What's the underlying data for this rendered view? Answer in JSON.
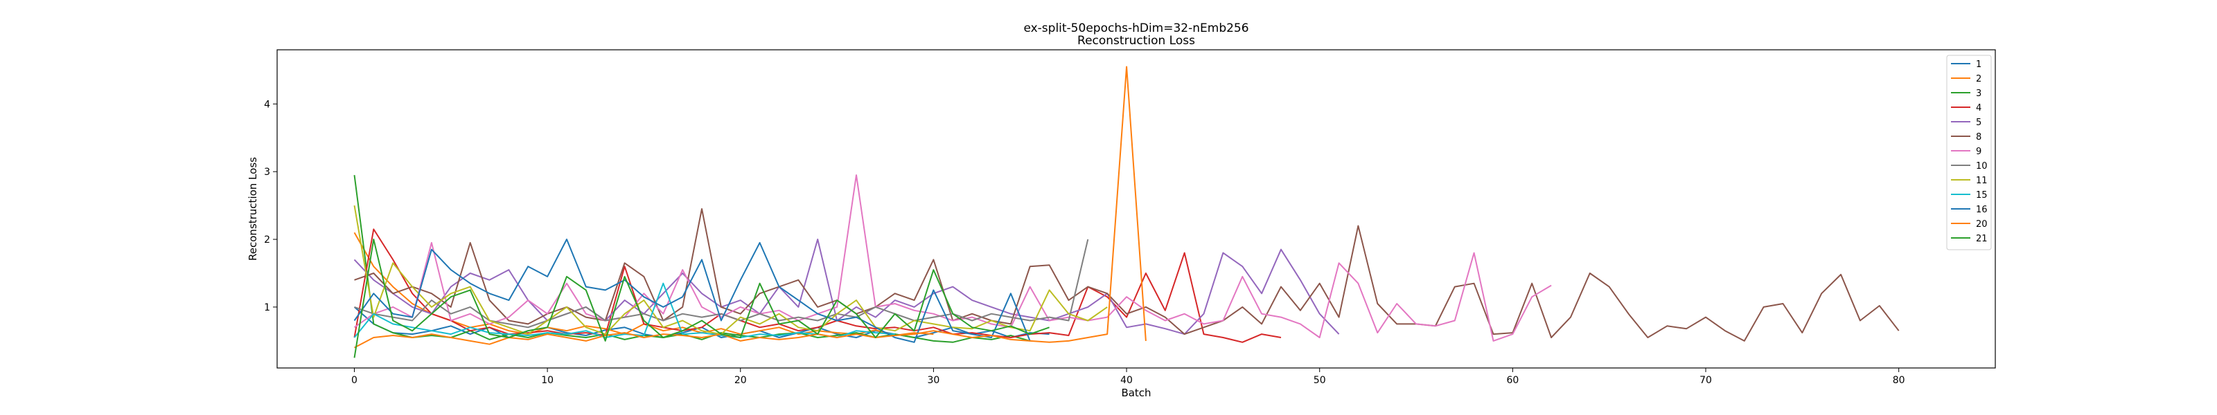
{
  "chart_data": {
    "type": "line",
    "title": "ex-split-50epochs-hDim=32-nEmb256",
    "subtitle": "Reconstruction Loss",
    "xlabel": "Batch",
    "ylabel": "Reconstruction Loss",
    "xlim": [
      -4,
      85
    ],
    "ylim": [
      0.1,
      4.8
    ],
    "xticks": [
      0,
      10,
      20,
      30,
      40,
      50,
      60,
      70,
      80
    ],
    "yticks": [
      1,
      2,
      3,
      4
    ],
    "legend_position": "upper-right",
    "grid": false,
    "series": [
      {
        "name": "1",
        "color": "#1f77b4",
        "values": [
          1.0,
          0.75,
          0.62,
          0.6,
          0.65,
          0.72,
          0.6,
          0.7,
          0.55,
          0.65,
          0.7,
          0.62,
          0.58,
          0.66,
          0.7,
          0.6,
          0.55,
          0.62,
          0.7,
          0.55,
          0.6,
          0.65,
          0.55,
          0.62,
          0.7,
          0.6,
          0.55,
          0.65,
          0.6,
          0.55,
          0.62,
          0.7,
          0.6,
          0.65,
          0.55,
          0.62,
          0.6
        ]
      },
      {
        "name": "2",
        "color": "#ff7f0e",
        "values": [
          2.1,
          1.6,
          1.3,
          1.05,
          0.9,
          0.8,
          0.7,
          0.75,
          0.65,
          0.6,
          0.7,
          0.65,
          0.72,
          0.68,
          0.6,
          0.75,
          0.65,
          0.7,
          0.62,
          0.68,
          0.6,
          0.65,
          0.7,
          0.6,
          0.65,
          0.62,
          0.6,
          0.66,
          0.58,
          0.62,
          0.6
        ]
      },
      {
        "name": "3",
        "color": "#2ca02c",
        "values": [
          2.95,
          0.75,
          0.62,
          0.55,
          0.58,
          0.55,
          0.65,
          0.52,
          0.6,
          0.55,
          0.62,
          0.58,
          0.55,
          0.6,
          0.52,
          0.58,
          0.55,
          0.6,
          0.52,
          0.62,
          0.58,
          0.55,
          0.6,
          0.62,
          0.55,
          0.58,
          0.62,
          0.55,
          0.6,
          0.55,
          0.5,
          0.48,
          0.55,
          0.52,
          0.58,
          0.5
        ]
      },
      {
        "name": "4",
        "color": "#d62728",
        "values": [
          0.55,
          2.15,
          1.7,
          1.2,
          0.9,
          0.8,
          0.65,
          0.7,
          0.6,
          0.62,
          0.65,
          0.6,
          0.62,
          0.58,
          1.6,
          0.75,
          0.7,
          0.65,
          0.7,
          0.9,
          0.8,
          0.7,
          0.75,
          0.65,
          0.7,
          0.8,
          0.72,
          0.68,
          0.7,
          0.65,
          0.7,
          0.6,
          0.62,
          0.58,
          0.55,
          0.6,
          0.62,
          0.58,
          1.3,
          1.15,
          0.85,
          1.5,
          0.95,
          1.8,
          0.6,
          0.55,
          0.48,
          0.6,
          0.55
        ]
      },
      {
        "name": "5",
        "color": "#9467bd",
        "values": [
          1.7,
          1.4,
          1.2,
          1.0,
          0.9,
          1.3,
          1.5,
          1.4,
          1.55,
          1.1,
          0.8,
          0.9,
          1.0,
          0.8,
          1.1,
          0.9,
          1.2,
          1.5,
          1.2,
          1.0,
          1.1,
          0.9,
          1.3,
          1.0,
          2.0,
          0.8,
          1.0,
          0.85,
          1.1,
          1.0,
          1.2,
          1.3,
          1.1,
          1.0,
          0.9,
          0.85,
          0.8,
          0.9,
          1.0,
          1.2,
          0.7,
          0.75,
          0.68,
          0.6,
          0.9,
          1.8,
          1.6,
          1.2,
          1.85,
          1.4,
          0.9,
          0.6
        ]
      },
      {
        "name": "8",
        "color": "#8c564b",
        "values": [
          1.4,
          1.5,
          1.2,
          1.3,
          1.2,
          1.0,
          1.95,
          1.1,
          0.8,
          0.75,
          0.9,
          1.0,
          0.85,
          0.8,
          1.65,
          1.45,
          0.8,
          1.0,
          2.45,
          1.0,
          0.9,
          1.2,
          1.3,
          1.4,
          1.0,
          1.1,
          0.9,
          1.0,
          1.2,
          1.1,
          1.7,
          0.8,
          0.9,
          0.8,
          0.75,
          1.6,
          1.62,
          1.1,
          1.3,
          1.2,
          0.9,
          1.0,
          0.85,
          0.6,
          0.7,
          0.8,
          1.0,
          0.75,
          1.3,
          0.95,
          1.35,
          0.85,
          2.2,
          1.05,
          0.75,
          0.75,
          0.72,
          1.3,
          1.35,
          0.6,
          0.62,
          1.35,
          0.55,
          0.85,
          1.5,
          1.3,
          0.9,
          0.55,
          0.72,
          0.68,
          0.85,
          0.65,
          0.5,
          1.0,
          1.05,
          0.62,
          1.2,
          1.48,
          0.8,
          1.02,
          0.65
        ]
      },
      {
        "name": "9",
        "color": "#e377c2",
        "values": [
          0.7,
          0.9,
          1.0,
          0.85,
          1.95,
          0.8,
          0.9,
          0.75,
          0.85,
          1.1,
          0.9,
          1.35,
          0.9,
          0.8,
          0.85,
          1.2,
          0.9,
          1.55,
          1.0,
          0.85,
          1.0,
          0.9,
          0.95,
          0.8,
          0.9,
          1.0,
          2.95,
          1.0,
          1.05,
          0.95,
          0.9,
          0.8,
          0.85,
          0.75,
          0.7,
          1.3,
          0.8,
          0.85,
          0.8,
          0.85,
          1.15,
          0.95,
          0.8,
          0.9,
          0.75,
          0.8,
          1.45,
          0.9,
          0.85,
          0.75,
          0.55,
          1.65,
          1.35,
          0.62,
          1.05,
          0.75,
          0.72,
          0.8,
          1.8,
          0.5,
          0.6,
          1.15,
          1.32
        ]
      },
      {
        "name": "10",
        "color": "#7f7f7f",
        "values": [
          1.0,
          0.9,
          0.85,
          0.8,
          1.1,
          0.9,
          1.0,
          0.8,
          0.75,
          0.7,
          0.8,
          0.9,
          1.0,
          0.8,
          0.85,
          0.9,
          0.8,
          0.9,
          0.85,
          0.9,
          0.8,
          0.9,
          0.8,
          0.85,
          0.8,
          0.9,
          0.85,
          1.0,
          0.9,
          0.8,
          0.85,
          0.9,
          0.8,
          0.9,
          0.85,
          0.8,
          0.85,
          0.8,
          2.0
        ]
      },
      {
        "name": "11",
        "color": "#bcbd22",
        "values": [
          2.5,
          0.85,
          1.65,
          1.3,
          1.0,
          1.2,
          1.3,
          0.8,
          0.7,
          0.6,
          0.8,
          1.0,
          0.7,
          0.6,
          0.9,
          1.1,
          0.7,
          0.8,
          0.65,
          0.6,
          0.85,
          0.75,
          0.9,
          0.7,
          0.65,
          0.9,
          1.1,
          0.7,
          0.65,
          0.8,
          0.75,
          0.7,
          0.68,
          0.8,
          0.7,
          0.65,
          1.25,
          0.9,
          0.8,
          1.0
        ]
      },
      {
        "name": "15",
        "color": "#17becf",
        "values": [
          0.55,
          0.9,
          0.75,
          0.7,
          0.65,
          0.6,
          0.7,
          0.62,
          0.6,
          0.58,
          0.62,
          0.6,
          0.65,
          0.55,
          0.6,
          0.58,
          1.35,
          0.6,
          0.62,
          0.58,
          0.55,
          0.6,
          0.58,
          0.62,
          0.6,
          0.55,
          0.65,
          0.62,
          0.6
        ]
      },
      {
        "name": "16",
        "color": "#1f77b4",
        "values": [
          0.8,
          1.2,
          0.9,
          0.85,
          1.85,
          1.55,
          1.35,
          1.2,
          1.1,
          1.6,
          1.45,
          2.0,
          1.3,
          1.25,
          1.4,
          1.15,
          1.0,
          1.15,
          1.7,
          0.8,
          1.4,
          1.95,
          1.3,
          1.1,
          0.9,
          0.8,
          0.85,
          0.7,
          0.55,
          0.48,
          1.25,
          0.65,
          0.6,
          0.55,
          1.2,
          0.5
        ]
      },
      {
        "name": "20",
        "color": "#ff7f0e",
        "values": [
          0.4,
          0.55,
          0.58,
          0.55,
          0.6,
          0.55,
          0.5,
          0.45,
          0.55,
          0.52,
          0.6,
          0.55,
          0.5,
          0.58,
          0.62,
          0.55,
          0.6,
          0.58,
          0.55,
          0.6,
          0.5,
          0.55,
          0.52,
          0.55,
          0.6,
          0.55,
          0.6,
          0.55,
          0.58,
          0.6,
          0.65,
          0.6,
          0.55,
          0.58,
          0.52,
          0.5,
          0.48,
          0.5,
          0.55,
          0.6,
          4.55,
          0.5
        ]
      },
      {
        "name": "21",
        "color": "#2ca02c",
        "values": [
          0.25,
          2.0,
          0.8,
          0.65,
          0.9,
          1.15,
          1.25,
          0.6,
          0.55,
          0.65,
          0.7,
          1.45,
          1.25,
          0.5,
          1.45,
          0.8,
          0.55,
          0.65,
          0.8,
          0.6,
          0.55,
          1.35,
          0.75,
          0.8,
          0.6,
          1.1,
          0.9,
          0.55,
          0.9,
          0.65,
          1.55,
          0.9,
          0.7,
          0.65,
          0.72,
          0.6,
          0.7
        ]
      }
    ]
  }
}
